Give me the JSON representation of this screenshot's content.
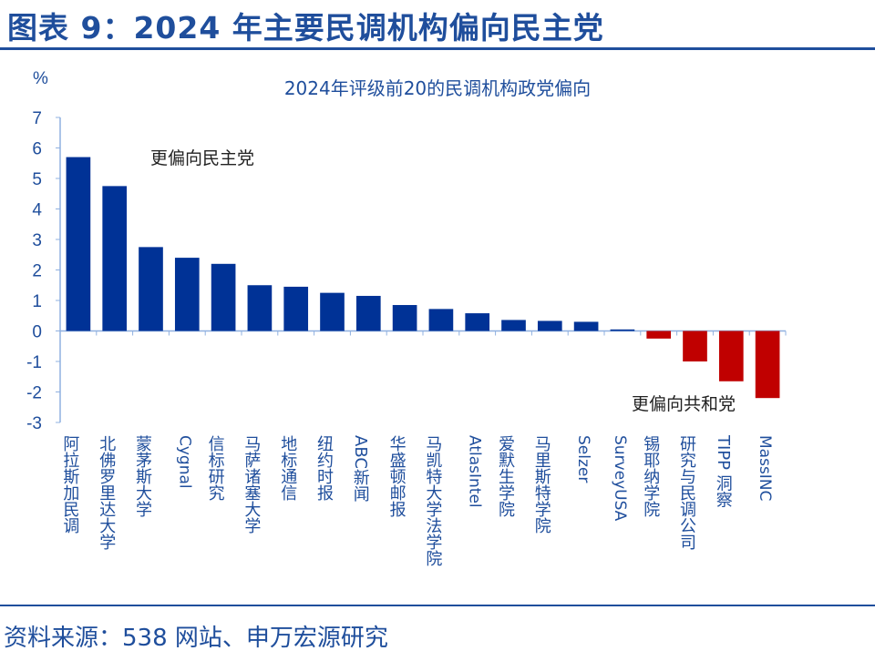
{
  "figure_title": "图表 9：2024 年主要民调机构偏向民主党",
  "source": "资料来源：538 网站、申万宏源研究",
  "chart_data": {
    "type": "bar",
    "title": "2024年评级前20的民调机构政党偏向",
    "ylabel": "%",
    "ylim": [
      -3,
      7
    ],
    "yticks": [
      7,
      6,
      5,
      4,
      3,
      2,
      1,
      0,
      -1,
      -2,
      -3
    ],
    "grid": false,
    "categories": [
      "阿拉斯加民调",
      "北佛罗里达大学",
      "蒙茅斯大学",
      "Cygnal",
      "信标研究",
      "马萨诸塞大学",
      "地标通信",
      "纽约时报",
      "ABC新闻",
      "华盛顿邮报",
      "马凯特大学法学院",
      "AtlasIntel",
      "爱默生学院",
      "马里斯特学院",
      "Selzer",
      "SurveyUSA",
      "锡耶纳学院",
      "研究与民调公司",
      "TIPP 洞察",
      "MassINC"
    ],
    "values": [
      5.7,
      4.75,
      2.75,
      2.4,
      2.2,
      1.5,
      1.45,
      1.25,
      1.15,
      0.85,
      0.72,
      0.58,
      0.36,
      0.33,
      0.3,
      0.05,
      -0.25,
      -1.0,
      -1.65,
      -2.2
    ],
    "colors": {
      "positive": "#003296",
      "negative": "#c00000",
      "axis": "#8fb0e0",
      "text": "#1f4e9c"
    },
    "annotations": [
      "更偏向民主党",
      "更偏向共和党"
    ]
  }
}
